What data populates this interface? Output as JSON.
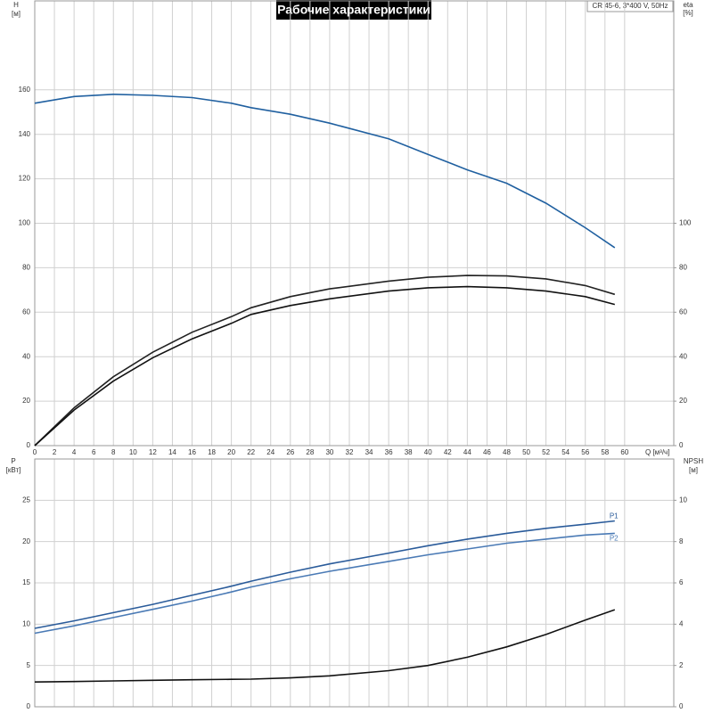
{
  "chart_data": [
    {
      "type": "line",
      "title": "Рабочие характеристики",
      "info": "CR 45-6, 3*400 V, 50Hz",
      "x_label": "Q [м³/ч]",
      "y_label": "H",
      "y_unit": "[м]",
      "y2_label": "eta",
      "y2_unit": "[%]",
      "x": [
        0,
        4,
        8,
        12,
        16,
        20,
        22,
        26,
        30,
        36,
        40,
        44,
        48,
        52,
        56,
        59
      ],
      "xlim": [
        0,
        65
      ],
      "xticks": [
        0,
        2,
        4,
        6,
        8,
        10,
        12,
        14,
        16,
        18,
        20,
        22,
        24,
        26,
        28,
        30,
        32,
        34,
        36,
        38,
        40,
        42,
        44,
        46,
        48,
        50,
        52,
        54,
        56,
        58,
        60
      ],
      "ylim": [
        0,
        200
      ],
      "yticks": [
        0,
        20,
        40,
        60,
        80,
        100,
        120,
        140,
        160
      ],
      "y2lim": [
        0,
        200
      ],
      "y2ticks": [
        0,
        20,
        40,
        60,
        80,
        100
      ],
      "series": [
        {
          "color": "#2060a0",
          "values": [
            154,
            157,
            158,
            157.5,
            156.5,
            154,
            152,
            149,
            145,
            138,
            131,
            124,
            118,
            109,
            98,
            89
          ]
        },
        {
          "color": "#222222",
          "axis": "y2",
          "values": [
            0,
            17,
            31,
            42,
            51,
            58,
            62,
            67,
            70.5,
            74,
            75.7,
            76.5,
            76.3,
            75,
            72,
            68
          ]
        },
        {
          "color": "#111111",
          "axis": "y2",
          "values": [
            0,
            16,
            29,
            39.5,
            48,
            55,
            59,
            63,
            66,
            69.5,
            71,
            71.5,
            71,
            69.5,
            67,
            63.5
          ]
        }
      ]
    },
    {
      "type": "line",
      "y_label": "P",
      "y_unit": "[кВт]",
      "y2_label": "NPSH",
      "y2_unit": "[м]",
      "x": [
        0,
        4,
        8,
        12,
        16,
        20,
        22,
        26,
        30,
        36,
        40,
        44,
        48,
        52,
        56,
        59
      ],
      "xlim": [
        0,
        65
      ],
      "ylim": [
        0,
        30
      ],
      "yticks": [
        0,
        5,
        10,
        15,
        20,
        25
      ],
      "y2lim": [
        0,
        12
      ],
      "y2ticks": [
        0,
        2,
        4,
        6,
        8,
        10
      ],
      "series": [
        {
          "name": "P1",
          "color": "#2a5b9a",
          "values": [
            9.5,
            10.4,
            11.4,
            12.4,
            13.5,
            14.6,
            15.2,
            16.3,
            17.3,
            18.6,
            19.5,
            20.3,
            21.0,
            21.6,
            22.1,
            22.5
          ]
        },
        {
          "name": "P2",
          "color": "#4a7ab5",
          "values": [
            8.9,
            9.8,
            10.8,
            11.8,
            12.8,
            13.9,
            14.5,
            15.5,
            16.4,
            17.6,
            18.4,
            19.1,
            19.8,
            20.3,
            20.8,
            21.0
          ]
        },
        {
          "color": "#111111",
          "axis": "y2",
          "values": [
            1.2,
            1.22,
            1.25,
            1.28,
            1.31,
            1.33,
            1.34,
            1.4,
            1.5,
            1.75,
            2.0,
            2.4,
            2.9,
            3.5,
            4.2,
            4.7
          ]
        }
      ]
    }
  ]
}
